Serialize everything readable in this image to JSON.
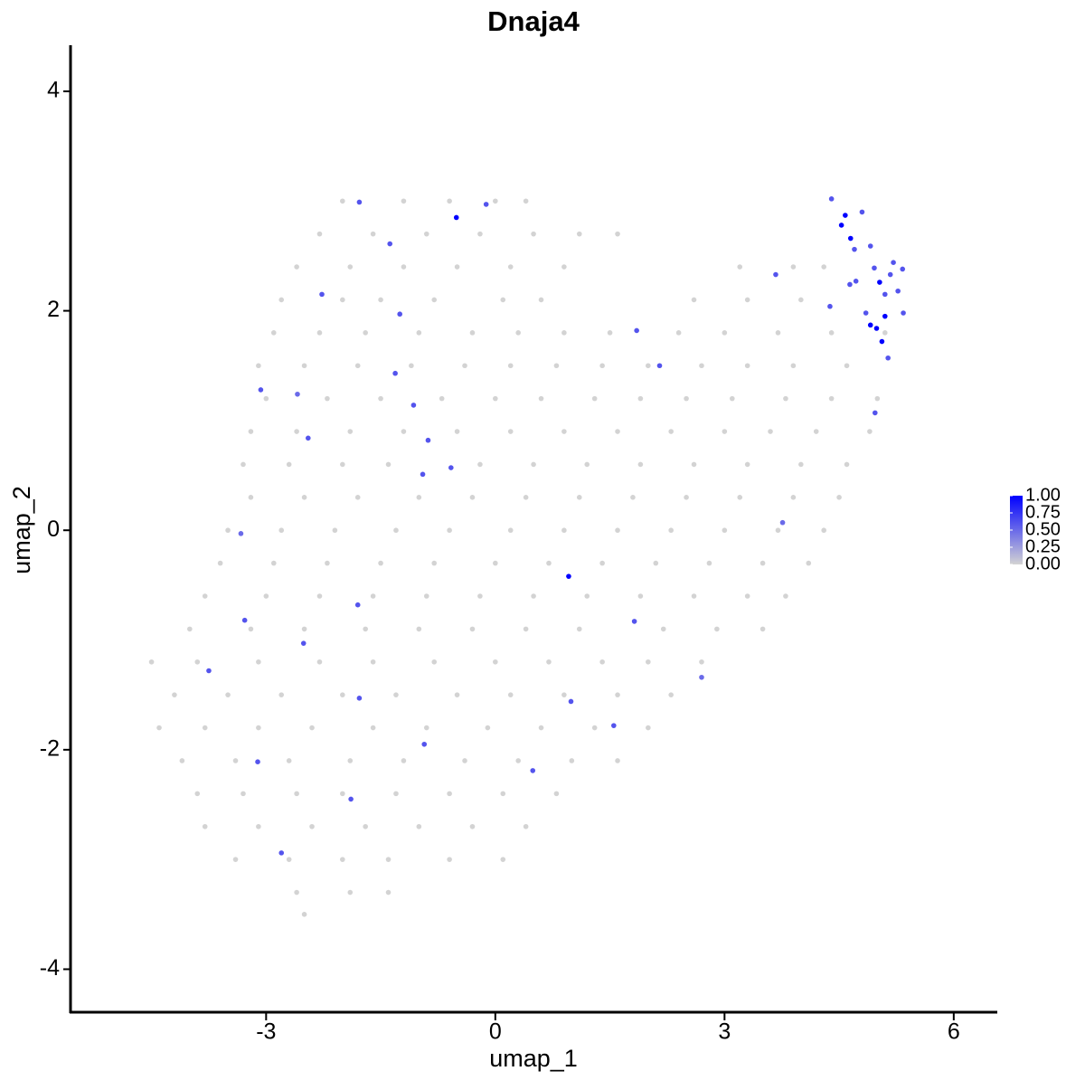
{
  "chart_data": {
    "type": "scatter",
    "title": "Dnaja4",
    "x_label": "umap_1",
    "y_label": "umap_2",
    "xlim": [
      -5.56,
      6.57
    ],
    "ylim": [
      -4.4,
      4.42
    ],
    "xticks": [
      -3,
      0,
      3,
      6
    ],
    "yticks": [
      -4,
      -2,
      0,
      2,
      4
    ],
    "color_low": "#d3d3d3",
    "color_high": "#0000ff",
    "colorbar_ticks": [
      {
        "value": 0,
        "label": "0.00"
      },
      {
        "value": 0.25,
        "label": "0.25"
      },
      {
        "value": 0.5,
        "label": "0.50"
      },
      {
        "value": 0.75,
        "label": "0.75"
      },
      {
        "value": 1,
        "label": "1.00"
      }
    ],
    "points": [
      [
        -2.0,
        3.0,
        0
      ],
      [
        -1.2,
        3.0,
        0
      ],
      [
        -0.6,
        3.0,
        0
      ],
      [
        0.0,
        3.0,
        0
      ],
      [
        0.4,
        3.0,
        0
      ],
      [
        -2.3,
        2.7,
        0
      ],
      [
        -1.6,
        2.7,
        0
      ],
      [
        -0.9,
        2.7,
        0
      ],
      [
        -0.2,
        2.7,
        0
      ],
      [
        0.5,
        2.7,
        0
      ],
      [
        1.1,
        2.7,
        0
      ],
      [
        1.6,
        2.7,
        0
      ],
      [
        -2.6,
        2.4,
        0
      ],
      [
        -1.9,
        2.4,
        0
      ],
      [
        -1.2,
        2.4,
        0
      ],
      [
        -0.5,
        2.4,
        0
      ],
      [
        0.2,
        2.4,
        0
      ],
      [
        0.9,
        2.4,
        0
      ],
      [
        3.2,
        2.4,
        0
      ],
      [
        3.9,
        2.4,
        0
      ],
      [
        4.3,
        2.4,
        0
      ],
      [
        -2.8,
        2.1,
        0
      ],
      [
        -2.0,
        2.1,
        0
      ],
      [
        -1.5,
        2.1,
        0
      ],
      [
        -0.8,
        2.1,
        0
      ],
      [
        0.1,
        2.1,
        0
      ],
      [
        0.6,
        2.1,
        0
      ],
      [
        2.6,
        2.1,
        0
      ],
      [
        3.3,
        2.1,
        0
      ],
      [
        4.0,
        2.1,
        0
      ],
      [
        -2.9,
        1.8,
        0
      ],
      [
        -2.3,
        1.8,
        0
      ],
      [
        -1.7,
        1.8,
        0
      ],
      [
        -1.0,
        1.8,
        0
      ],
      [
        -0.3,
        1.8,
        0
      ],
      [
        0.3,
        1.8,
        0
      ],
      [
        0.9,
        1.8,
        0
      ],
      [
        1.5,
        1.8,
        0
      ],
      [
        2.4,
        1.8,
        0
      ],
      [
        3.0,
        1.8,
        0
      ],
      [
        3.7,
        1.8,
        0
      ],
      [
        4.4,
        1.8,
        0
      ],
      [
        5.1,
        1.8,
        0
      ],
      [
        -3.1,
        1.5,
        0
      ],
      [
        -2.5,
        1.5,
        0
      ],
      [
        -1.8,
        1.5,
        0
      ],
      [
        -1.1,
        1.5,
        0
      ],
      [
        -0.4,
        1.5,
        0
      ],
      [
        0.2,
        1.5,
        0
      ],
      [
        0.8,
        1.5,
        0
      ],
      [
        1.4,
        1.5,
        0
      ],
      [
        2.0,
        1.5,
        0
      ],
      [
        2.7,
        1.5,
        0
      ],
      [
        3.3,
        1.5,
        0
      ],
      [
        3.9,
        1.5,
        0
      ],
      [
        4.6,
        1.5,
        0
      ],
      [
        -3.0,
        1.2,
        0
      ],
      [
        -2.2,
        1.2,
        0
      ],
      [
        -1.5,
        1.2,
        0
      ],
      [
        -0.7,
        1.2,
        0
      ],
      [
        0.0,
        1.2,
        0
      ],
      [
        0.6,
        1.2,
        0
      ],
      [
        1.3,
        1.2,
        0
      ],
      [
        1.9,
        1.2,
        0
      ],
      [
        2.5,
        1.2,
        0
      ],
      [
        3.1,
        1.2,
        0
      ],
      [
        3.8,
        1.2,
        0
      ],
      [
        4.4,
        1.2,
        0
      ],
      [
        5.0,
        1.2,
        0
      ],
      [
        -3.2,
        0.9,
        0
      ],
      [
        -2.6,
        0.9,
        0
      ],
      [
        -1.9,
        0.9,
        0
      ],
      [
        -1.2,
        0.9,
        0
      ],
      [
        -0.5,
        0.9,
        0
      ],
      [
        0.2,
        0.9,
        0
      ],
      [
        0.9,
        0.9,
        0
      ],
      [
        1.6,
        0.9,
        0
      ],
      [
        2.3,
        0.9,
        0
      ],
      [
        3.0,
        0.9,
        0
      ],
      [
        3.6,
        0.9,
        0
      ],
      [
        4.2,
        0.9,
        0
      ],
      [
        4.9,
        0.9,
        0
      ],
      [
        -3.3,
        0.6,
        0
      ],
      [
        -2.7,
        0.6,
        0
      ],
      [
        -2.0,
        0.6,
        0
      ],
      [
        -1.4,
        0.6,
        0
      ],
      [
        -0.2,
        0.6,
        0
      ],
      [
        0.5,
        0.6,
        0
      ],
      [
        1.2,
        0.6,
        0
      ],
      [
        1.9,
        0.6,
        0
      ],
      [
        2.6,
        0.6,
        0
      ],
      [
        3.3,
        0.6,
        0
      ],
      [
        4.0,
        0.6,
        0
      ],
      [
        4.6,
        0.6,
        0
      ],
      [
        -3.2,
        0.3,
        0
      ],
      [
        -2.5,
        0.3,
        0
      ],
      [
        -1.8,
        0.3,
        0
      ],
      [
        -1.0,
        0.3,
        0
      ],
      [
        -0.3,
        0.3,
        0
      ],
      [
        0.4,
        0.3,
        0
      ],
      [
        1.1,
        0.3,
        0
      ],
      [
        1.8,
        0.3,
        0
      ],
      [
        2.5,
        0.3,
        0
      ],
      [
        3.2,
        0.3,
        0
      ],
      [
        3.9,
        0.3,
        0
      ],
      [
        4.5,
        0.3,
        0
      ],
      [
        -3.5,
        0.0,
        0
      ],
      [
        -2.8,
        0.0,
        0
      ],
      [
        -2.1,
        0.0,
        0
      ],
      [
        -1.3,
        0.0,
        0
      ],
      [
        -0.6,
        0.0,
        0
      ],
      [
        0.2,
        0.0,
        0
      ],
      [
        0.9,
        0.0,
        0
      ],
      [
        1.6,
        0.0,
        0
      ],
      [
        2.3,
        0.0,
        0
      ],
      [
        3.0,
        0.0,
        0
      ],
      [
        3.7,
        0.0,
        0
      ],
      [
        4.3,
        0.0,
        0
      ],
      [
        -3.6,
        -0.3,
        0
      ],
      [
        -2.9,
        -0.3,
        0
      ],
      [
        -2.2,
        -0.3,
        0
      ],
      [
        -1.5,
        -0.3,
        0
      ],
      [
        -0.8,
        -0.3,
        0
      ],
      [
        0.0,
        -0.3,
        0
      ],
      [
        0.7,
        -0.3,
        0
      ],
      [
        1.4,
        -0.3,
        0
      ],
      [
        2.1,
        -0.3,
        0
      ],
      [
        2.8,
        -0.3,
        0
      ],
      [
        3.5,
        -0.3,
        0
      ],
      [
        4.1,
        -0.3,
        0
      ],
      [
        -3.8,
        -0.6,
        0
      ],
      [
        -3.0,
        -0.6,
        0
      ],
      [
        -2.3,
        -0.6,
        0
      ],
      [
        -1.6,
        -0.6,
        0
      ],
      [
        -0.9,
        -0.6,
        0
      ],
      [
        -0.2,
        -0.6,
        0
      ],
      [
        0.5,
        -0.6,
        0
      ],
      [
        1.2,
        -0.6,
        0
      ],
      [
        1.9,
        -0.6,
        0
      ],
      [
        2.6,
        -0.6,
        0
      ],
      [
        3.3,
        -0.6,
        0
      ],
      [
        3.8,
        -0.6,
        0
      ],
      [
        -4.0,
        -0.9,
        0
      ],
      [
        -3.2,
        -0.9,
        0
      ],
      [
        -2.5,
        -0.9,
        0
      ],
      [
        -1.7,
        -0.9,
        0
      ],
      [
        -1.0,
        -0.9,
        0
      ],
      [
        -0.3,
        -0.9,
        0
      ],
      [
        0.4,
        -0.9,
        0
      ],
      [
        1.1,
        -0.9,
        0
      ],
      [
        2.2,
        -0.9,
        0
      ],
      [
        2.9,
        -0.9,
        0
      ],
      [
        3.5,
        -0.9,
        0
      ],
      [
        -4.5,
        -1.2,
        0
      ],
      [
        -3.9,
        -1.2,
        0
      ],
      [
        -3.1,
        -1.2,
        0
      ],
      [
        -2.3,
        -1.2,
        0
      ],
      [
        -1.6,
        -1.2,
        0
      ],
      [
        -0.8,
        -1.2,
        0
      ],
      [
        0.0,
        -1.2,
        0
      ],
      [
        0.7,
        -1.2,
        0
      ],
      [
        1.4,
        -1.2,
        0
      ],
      [
        2.0,
        -1.2,
        0
      ],
      [
        2.7,
        -1.2,
        0
      ],
      [
        -4.2,
        -1.5,
        0
      ],
      [
        -3.5,
        -1.5,
        0
      ],
      [
        -2.8,
        -1.5,
        0
      ],
      [
        -2.0,
        -1.5,
        0
      ],
      [
        -1.3,
        -1.5,
        0
      ],
      [
        -0.5,
        -1.5,
        0
      ],
      [
        0.2,
        -1.5,
        0
      ],
      [
        0.9,
        -1.5,
        0
      ],
      [
        1.6,
        -1.5,
        0
      ],
      [
        2.3,
        -1.5,
        0
      ],
      [
        -4.4,
        -1.8,
        0
      ],
      [
        -3.8,
        -1.8,
        0
      ],
      [
        -3.1,
        -1.8,
        0
      ],
      [
        -2.4,
        -1.8,
        0
      ],
      [
        -1.6,
        -1.8,
        0
      ],
      [
        -0.9,
        -1.8,
        0
      ],
      [
        -0.1,
        -1.8,
        0
      ],
      [
        0.6,
        -1.8,
        0
      ],
      [
        1.3,
        -1.8,
        0
      ],
      [
        2.0,
        -1.8,
        0
      ],
      [
        -4.1,
        -2.1,
        0
      ],
      [
        -3.4,
        -2.1,
        0
      ],
      [
        -2.7,
        -2.1,
        0
      ],
      [
        -1.9,
        -2.1,
        0
      ],
      [
        -1.2,
        -2.1,
        0
      ],
      [
        -0.4,
        -2.1,
        0
      ],
      [
        0.3,
        -2.1,
        0
      ],
      [
        1.0,
        -2.1,
        0
      ],
      [
        1.6,
        -2.1,
        0
      ],
      [
        -3.9,
        -2.4,
        0
      ],
      [
        -3.3,
        -2.4,
        0
      ],
      [
        -2.6,
        -2.4,
        0
      ],
      [
        -2.0,
        -2.4,
        0
      ],
      [
        -1.3,
        -2.4,
        0
      ],
      [
        -0.6,
        -2.4,
        0
      ],
      [
        0.1,
        -2.4,
        0
      ],
      [
        0.8,
        -2.4,
        0
      ],
      [
        -3.8,
        -2.7,
        0
      ],
      [
        -3.1,
        -2.7,
        0
      ],
      [
        -2.4,
        -2.7,
        0
      ],
      [
        -1.7,
        -2.7,
        0
      ],
      [
        -1.0,
        -2.7,
        0
      ],
      [
        -0.3,
        -2.7,
        0
      ],
      [
        0.4,
        -2.7,
        0
      ],
      [
        -3.4,
        -3.0,
        0
      ],
      [
        -2.7,
        -3.0,
        0
      ],
      [
        -2.0,
        -3.0,
        0
      ],
      [
        -1.4,
        -3.0,
        0
      ],
      [
        -0.6,
        -3.0,
        0
      ],
      [
        0.1,
        -3.0,
        0
      ],
      [
        -2.6,
        -3.3,
        0
      ],
      [
        -1.9,
        -3.3,
        0
      ],
      [
        -1.4,
        -3.3,
        0
      ],
      [
        -2.5,
        -3.5,
        0
      ],
      [
        -0.12,
        2.97,
        0.6
      ],
      [
        -1.78,
        2.99,
        0.6
      ],
      [
        -1.38,
        2.61,
        0.6
      ],
      [
        -2.27,
        2.15,
        0.6
      ],
      [
        -1.25,
        1.97,
        0.6
      ],
      [
        -3.07,
        1.28,
        0.6
      ],
      [
        -2.59,
        1.24,
        0.5
      ],
      [
        -1.31,
        1.43,
        0.6
      ],
      [
        -1.07,
        1.14,
        0.6
      ],
      [
        -2.45,
        0.84,
        0.6
      ],
      [
        -0.88,
        0.82,
        0.6
      ],
      [
        -0.58,
        0.57,
        0.6
      ],
      [
        -0.95,
        0.51,
        0.6
      ],
      [
        -3.33,
        -0.03,
        0.5
      ],
      [
        -1.8,
        -0.68,
        0.6
      ],
      [
        -3.28,
        -0.82,
        0.6
      ],
      [
        -2.51,
        -1.03,
        0.6
      ],
      [
        -3.75,
        -1.28,
        0.6
      ],
      [
        -1.78,
        -1.53,
        0.6
      ],
      [
        0.99,
        -1.56,
        0.6
      ],
      [
        1.55,
        -1.78,
        0.6
      ],
      [
        -0.93,
        -1.95,
        0.6
      ],
      [
        -3.11,
        -2.11,
        0.6
      ],
      [
        0.49,
        -2.19,
        0.6
      ],
      [
        -1.89,
        -2.45,
        0.6
      ],
      [
        -2.8,
        -2.94,
        0.6
      ],
      [
        1.82,
        -0.83,
        0.6
      ],
      [
        2.7,
        -1.34,
        0.5
      ],
      [
        3.76,
        0.07,
        0.5
      ],
      [
        1.85,
        1.82,
        0.6
      ],
      [
        2.15,
        1.5,
        0.6
      ],
      [
        3.67,
        2.33,
        0.6
      ],
      [
        4.4,
        3.02,
        0.6
      ],
      [
        4.8,
        2.9,
        0.6
      ],
      [
        4.91,
        2.59,
        0.6
      ],
      [
        4.7,
        2.56,
        0.6
      ],
      [
        4.96,
        2.39,
        0.6
      ],
      [
        5.21,
        2.44,
        0.6
      ],
      [
        5.33,
        2.38,
        0.6
      ],
      [
        5.17,
        2.33,
        0.6
      ],
      [
        4.64,
        2.24,
        0.6
      ],
      [
        4.72,
        2.27,
        0.6
      ],
      [
        4.38,
        2.04,
        0.6
      ],
      [
        4.85,
        1.98,
        0.6
      ],
      [
        5.1,
        2.15,
        0.6
      ],
      [
        5.27,
        2.18,
        0.6
      ],
      [
        5.34,
        1.98,
        0.6
      ],
      [
        5.14,
        1.57,
        0.6
      ],
      [
        4.97,
        1.07,
        0.6
      ],
      [
        -0.51,
        2.85,
        1.0
      ],
      [
        0.96,
        -0.42,
        1.0
      ],
      [
        4.58,
        2.87,
        1.0
      ],
      [
        4.53,
        2.78,
        1.0
      ],
      [
        4.65,
        2.66,
        1.0
      ],
      [
        5.03,
        2.26,
        1.0
      ],
      [
        5.1,
        1.95,
        1.0
      ],
      [
        4.91,
        1.87,
        1.0
      ],
      [
        4.99,
        1.84,
        1.0
      ],
      [
        5.06,
        1.72,
        1.0
      ]
    ]
  }
}
